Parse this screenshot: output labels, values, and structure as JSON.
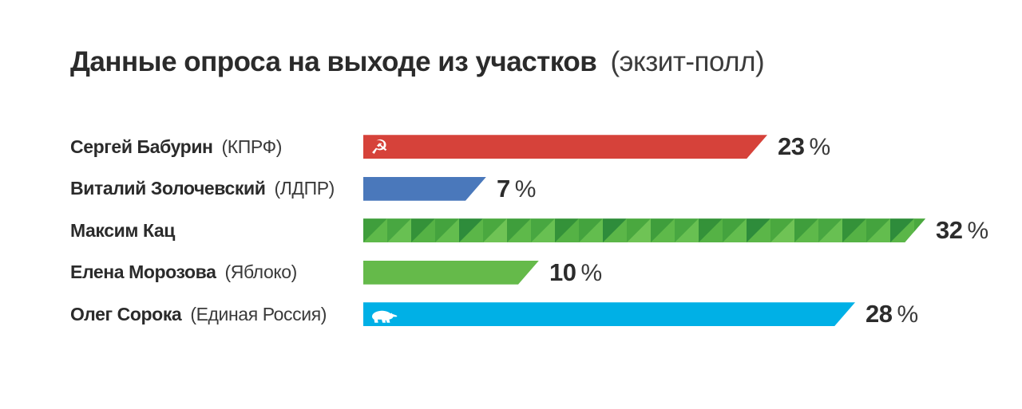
{
  "title": {
    "main": "Данные опроса на выходе из участков",
    "suffix": "(экзит-полл)"
  },
  "chart_data": {
    "type": "bar",
    "orientation": "horizontal",
    "title": "Данные опроса на выходе из участков (экзит-полл)",
    "unit": "%",
    "xlim": [
      0,
      35
    ],
    "grid": false,
    "legend": false,
    "categories": [
      "Сергей Бабурин (КПРФ)",
      "Виталий Золочевский (ЛДПР)",
      "Максим Кац",
      "Елена Морозова (Яблоко)",
      "Олег Сорока (Единая Россия)"
    ],
    "values": [
      23,
      7,
      32,
      10,
      28
    ],
    "rows": [
      {
        "name": "Сергей Бабурин",
        "party": "(КПРФ)",
        "value": 23,
        "value_label": "23 %",
        "color": "#d6423a",
        "icon": "hammer-sickle-icon",
        "icon_glyph": "☭"
      },
      {
        "name": "Виталий Золочевский",
        "party": "(ЛДПР)",
        "value": 7,
        "value_label": "7 %",
        "color": "#4a78bb",
        "icon": ""
      },
      {
        "name": "Максим Кац",
        "party": "",
        "value": 32,
        "value_label": "32 %",
        "color": "#55b045",
        "icon": "",
        "pattern": "diagonal-triangles",
        "pattern_dark": [
          "#3f9e3c",
          "#48a741",
          "#349239",
          "#44a33e",
          "#2e8c3b",
          "#4aa83f"
        ],
        "pattern_light": [
          "#5eb94a",
          "#68c052",
          "#55b245",
          "#63bd4e",
          "#5bb648",
          "#6fc355"
        ]
      },
      {
        "name": "Елена Морозова",
        "party": "(Яблоко)",
        "value": 10,
        "value_label": "10 %",
        "color": "#65ba4a",
        "icon": ""
      },
      {
        "name": "Олег Сорока",
        "party": "(Единая Россия)",
        "value": 28,
        "value_label": "28 %",
        "color": "#00b0e6",
        "icon": "bear-icon"
      }
    ]
  }
}
